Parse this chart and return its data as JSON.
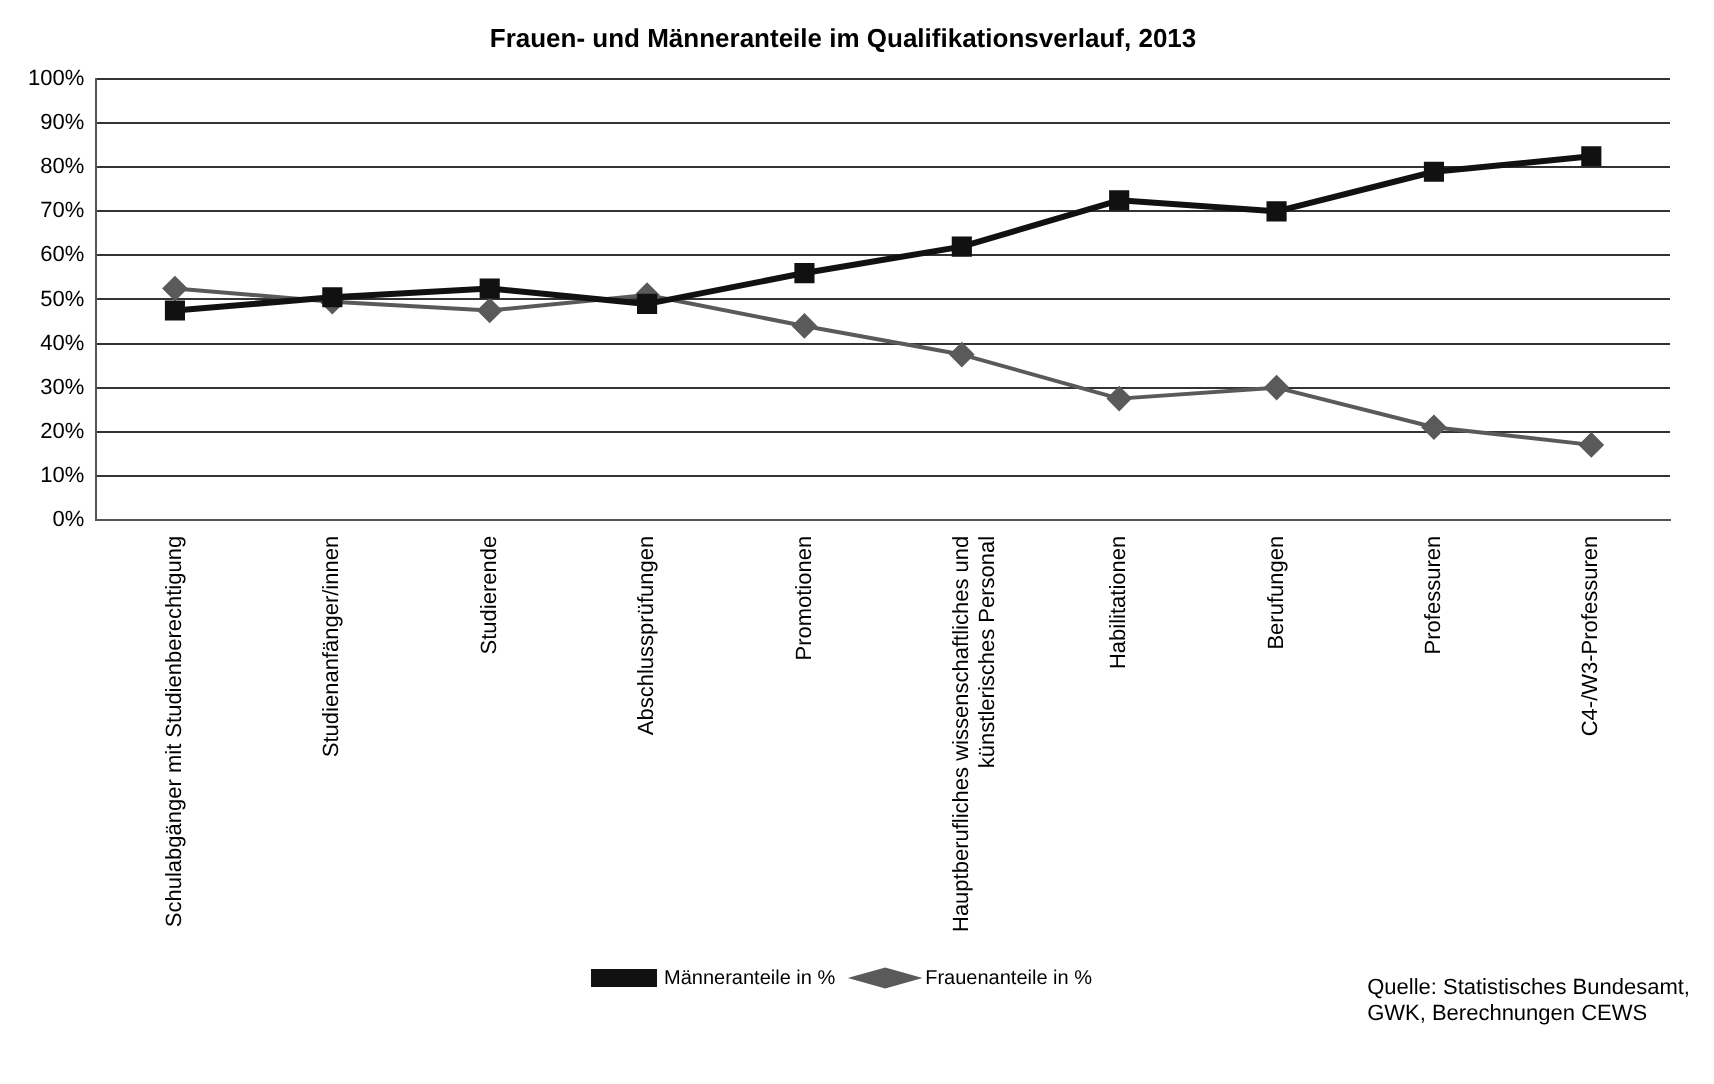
{
  "chart_data": {
    "type": "line",
    "title": "Frauen- und Männeranteile im Qualifikationsverlauf, 2013",
    "categories": [
      "Schulabgänger mit Studienberechtigung",
      "Studienanfänger/innen",
      "Studierende",
      "Abschlussprüfungen",
      "Promotionen",
      "Hauptberufliches wissenschaftliches und\nkünstlerisches Personal",
      "Habilitationen",
      "Berufungen",
      "Professuren",
      "C4-/W3-Professuren"
    ],
    "series": [
      {
        "name": "Frauenanteile in %",
        "color": "#5a5a5a",
        "marker": "diamond",
        "values": [
          52.5,
          49.5,
          47.5,
          51,
          44,
          37.5,
          27.5,
          30,
          21,
          17
        ]
      },
      {
        "name": "Männeranteile in %",
        "color": "#111111",
        "marker": "square",
        "values": [
          47.5,
          50.5,
          52.5,
          49,
          56,
          62,
          72.5,
          70,
          79,
          82.5
        ]
      }
    ],
    "ylim": [
      0,
      100
    ],
    "yticks": [
      {
        "value": 0,
        "label": "0%"
      },
      {
        "value": 10,
        "label": "10%"
      },
      {
        "value": 20,
        "label": "20%"
      },
      {
        "value": 30,
        "label": "30%"
      },
      {
        "value": 40,
        "label": "40%"
      },
      {
        "value": 50,
        "label": "50%"
      },
      {
        "value": 60,
        "label": "60%"
      },
      {
        "value": 70,
        "label": "70%"
      },
      {
        "value": 80,
        "label": "80%"
      },
      {
        "value": 90,
        "label": "90%"
      },
      {
        "value": 100,
        "label": "100%"
      }
    ],
    "grid": "y",
    "legend": "bottom",
    "line_style": "solid",
    "annotations": [
      "Quelle:  Statistisches Bundesamt,\nGWK, Berechnungen  CEWS"
    ]
  }
}
